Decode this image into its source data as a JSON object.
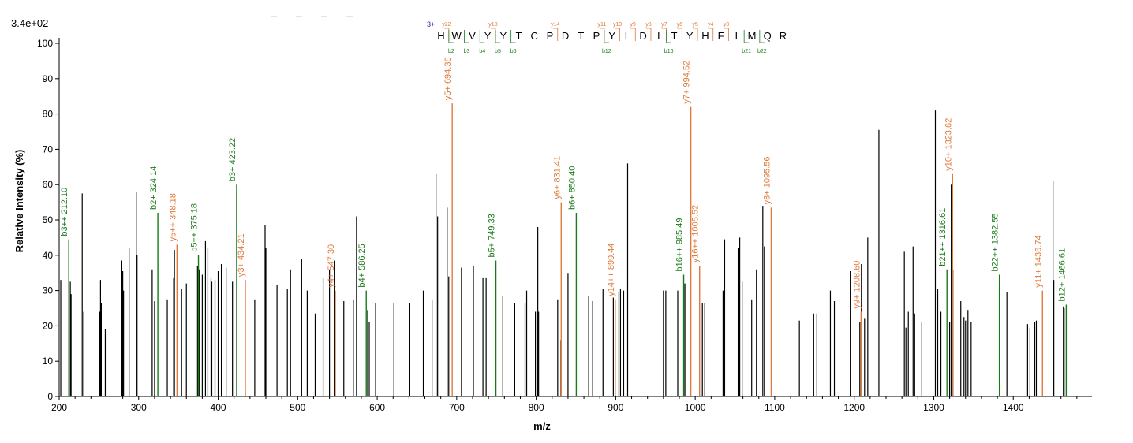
{
  "scale_label": "3.4e+02",
  "charge_label": "3+",
  "sequence": [
    "H",
    "W",
    "V",
    "Y",
    "Y",
    "T",
    "C",
    "P",
    "D",
    "T",
    "P",
    "Y",
    "L",
    "D",
    "I",
    "T",
    "Y",
    "H",
    "F",
    "I",
    "M",
    "Q",
    "R"
  ],
  "y_ions_top": [
    "y22",
    "y18",
    "y14",
    "y11",
    "y10",
    "y9",
    "y8",
    "y7",
    "y6",
    "y5",
    "y4",
    "y3"
  ],
  "b_ions_bottom": [
    "b2",
    "b3",
    "b4",
    "b5",
    "b6",
    "b12",
    "b16",
    "b21",
    "b22"
  ],
  "chart_data": {
    "type": "bar",
    "xlabel": "m/z",
    "ylabel": "Relative   Intensity (%)",
    "xlim": [
      200,
      1500
    ],
    "ylim": [
      0,
      100
    ],
    "x_ticks": [
      200,
      300,
      400,
      500,
      600,
      700,
      800,
      900,
      1000,
      1100,
      1200,
      1300,
      1400
    ],
    "y_ticks": [
      0,
      10,
      20,
      30,
      40,
      50,
      60,
      70,
      80,
      90,
      100
    ],
    "colors": {
      "unassigned": "#000000",
      "b_ion": "#1a7a1a",
      "y_ion": "#e07a3c"
    },
    "unassigned_peaks": [
      [
        202,
        33
      ],
      [
        214,
        32.5
      ],
      [
        215,
        29
      ],
      [
        229,
        57.5
      ],
      [
        231,
        24
      ],
      [
        251,
        24
      ],
      [
        252,
        33
      ],
      [
        253,
        26.5
      ],
      [
        258,
        19
      ],
      [
        278,
        38.5
      ],
      [
        279,
        30
      ],
      [
        280,
        35.5
      ],
      [
        281,
        30
      ],
      [
        288,
        42
      ],
      [
        297,
        58
      ],
      [
        298,
        40
      ],
      [
        317,
        36
      ],
      [
        320,
        27
      ],
      [
        336,
        27.5
      ],
      [
        344,
        33.5
      ],
      [
        345,
        41.5
      ],
      [
        354,
        30.5
      ],
      [
        360,
        32
      ],
      [
        374,
        37
      ],
      [
        376,
        36
      ],
      [
        380,
        34.5
      ],
      [
        384,
        44
      ],
      [
        387,
        42
      ],
      [
        391,
        33.5
      ],
      [
        392,
        32.5
      ],
      [
        396,
        33
      ],
      [
        400,
        35.5
      ],
      [
        404,
        37.5
      ],
      [
        410,
        36.5
      ],
      [
        418,
        32.5
      ],
      [
        446,
        27.5
      ],
      [
        459,
        48.5
      ],
      [
        460,
        42
      ],
      [
        474,
        31.5
      ],
      [
        487,
        30.5
      ],
      [
        491,
        36
      ],
      [
        505,
        39
      ],
      [
        512,
        30
      ],
      [
        522,
        23.5
      ],
      [
        532,
        33.5
      ],
      [
        540,
        36
      ],
      [
        546,
        38.5
      ],
      [
        558,
        27
      ],
      [
        570,
        27.5
      ],
      [
        574,
        51
      ],
      [
        588,
        24.5
      ],
      [
        590,
        21
      ],
      [
        598,
        26.5
      ],
      [
        621,
        26.5
      ],
      [
        641,
        26.5
      ],
      [
        658,
        30
      ],
      [
        669,
        27.5
      ],
      [
        674,
        63
      ],
      [
        676,
        51
      ],
      [
        688,
        53.5
      ],
      [
        690,
        34
      ],
      [
        706,
        36.5
      ],
      [
        721,
        37
      ],
      [
        733,
        33.5
      ],
      [
        737,
        33.5
      ],
      [
        758,
        28.5
      ],
      [
        773,
        26.5
      ],
      [
        786,
        26.5
      ],
      [
        788,
        30
      ],
      [
        799,
        24
      ],
      [
        802,
        48
      ],
      [
        803,
        24
      ],
      [
        827,
        27.5
      ],
      [
        831,
        16
      ],
      [
        840,
        35
      ],
      [
        866,
        28.5
      ],
      [
        871,
        27
      ],
      [
        884,
        30.5
      ],
      [
        897,
        28
      ],
      [
        904,
        29.5
      ],
      [
        906,
        30.5
      ],
      [
        910,
        30
      ],
      [
        915,
        66
      ],
      [
        960,
        30
      ],
      [
        963,
        30
      ],
      [
        978,
        30
      ],
      [
        987,
        32
      ],
      [
        1009,
        26.5
      ],
      [
        1012,
        26.5
      ],
      [
        1035,
        30
      ],
      [
        1037,
        44.5
      ],
      [
        1054,
        42
      ],
      [
        1056,
        45
      ],
      [
        1059,
        32.5
      ],
      [
        1071,
        27.5
      ],
      [
        1077,
        36
      ],
      [
        1085,
        54
      ],
      [
        1087,
        42.5
      ],
      [
        1131,
        21.5
      ],
      [
        1149,
        23.5
      ],
      [
        1153,
        23.5
      ],
      [
        1170,
        30
      ],
      [
        1175,
        27
      ],
      [
        1195,
        35.5
      ],
      [
        1207,
        21
      ],
      [
        1209,
        37.5
      ],
      [
        1213,
        22
      ],
      [
        1217,
        45
      ],
      [
        1231,
        75.5
      ],
      [
        1263,
        41
      ],
      [
        1265,
        19.5
      ],
      [
        1268,
        24
      ],
      [
        1274,
        42.5
      ],
      [
        1276,
        23.5
      ],
      [
        1285,
        21
      ],
      [
        1302,
        81
      ],
      [
        1305,
        30.5
      ],
      [
        1309,
        24
      ],
      [
        1320,
        21
      ],
      [
        1322,
        60
      ],
      [
        1323,
        16
      ],
      [
        1324,
        36
      ],
      [
        1334,
        27
      ],
      [
        1338,
        22.5
      ],
      [
        1340,
        21.5
      ],
      [
        1343,
        24.5
      ],
      [
        1347,
        21
      ],
      [
        1392,
        29.5
      ],
      [
        1418,
        20.5
      ],
      [
        1421,
        19.5
      ],
      [
        1427,
        21
      ],
      [
        1429,
        21.5
      ],
      [
        1450,
        61
      ],
      [
        1451,
        33
      ],
      [
        1463,
        25.5
      ],
      [
        1464,
        25
      ]
    ],
    "b_ion_peaks": [
      {
        "x": 212.1,
        "y": 44.5,
        "label": "b3++ 212.10"
      },
      {
        "x": 324.14,
        "y": 52,
        "label": "b2+ 324.14"
      },
      {
        "x": 375.18,
        "y": 40,
        "label": "b5++ 375.18"
      },
      {
        "x": 423.22,
        "y": 60,
        "label": "b3+ 423.22"
      },
      {
        "x": 586.25,
        "y": 30,
        "label": "b4+ 586.25"
      },
      {
        "x": 749.33,
        "y": 38.5,
        "label": "b5+ 749.33"
      },
      {
        "x": 850.4,
        "y": 52,
        "label": "b6+ 850.40"
      },
      {
        "x": 985.49,
        "y": 34.5,
        "label": "b16++ 985.49"
      },
      {
        "x": 1316.61,
        "y": 36,
        "label": "b21++ 1316.61"
      },
      {
        "x": 1382.55,
        "y": 34.5,
        "label": "b22++ 1382.55"
      },
      {
        "x": 1466.61,
        "y": 26,
        "label": "b12+ 1466.61"
      }
    ],
    "y_ion_peaks": [
      {
        "x": 348.18,
        "y": 43,
        "label": "y5++ 348.18"
      },
      {
        "x": 434.21,
        "y": 33,
        "label": "y3+ 434.21"
      },
      {
        "x": 547.3,
        "y": 30,
        "label": "y4+ 547.30"
      },
      {
        "x": 694.36,
        "y": 83,
        "label": "y5+ 694.36"
      },
      {
        "x": 831.41,
        "y": 55,
        "label": "y6+ 831.41"
      },
      {
        "x": 899.44,
        "y": 27.5,
        "label": "y14++ 899.44"
      },
      {
        "x": 994.52,
        "y": 82,
        "label": "y7+ 994.52"
      },
      {
        "x": 1005.52,
        "y": 37,
        "label": "y16++ 1005.52"
      },
      {
        "x": 1095.56,
        "y": 53.5,
        "label": "y8+ 1095.56"
      },
      {
        "x": 1208.6,
        "y": 24,
        "label": "y9+ 1208.60"
      },
      {
        "x": 1323.62,
        "y": 63,
        "label": "y10+ 1323.62"
      },
      {
        "x": 1436.74,
        "y": 30,
        "label": "y11+ 1436.74"
      }
    ]
  }
}
